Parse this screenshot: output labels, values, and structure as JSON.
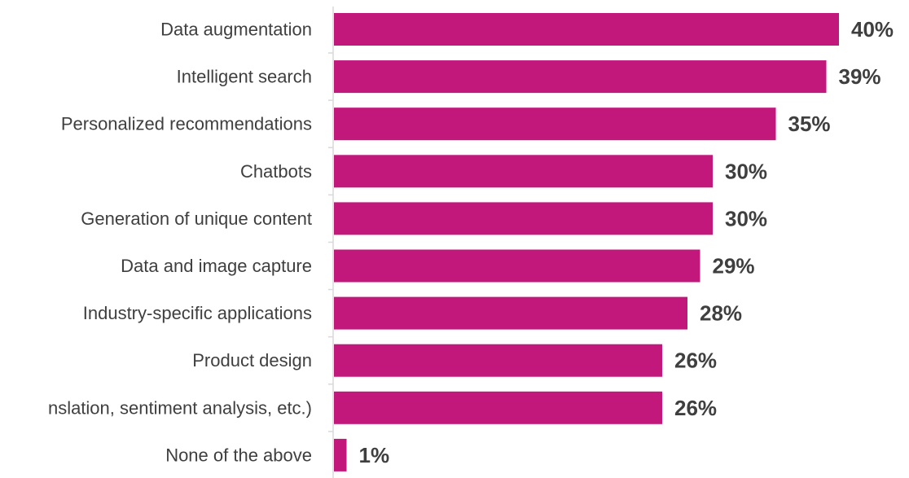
{
  "chart_data": {
    "type": "bar",
    "orientation": "horizontal",
    "categories": [
      "Data augmentation",
      "Intelligent search",
      "Personalized recommendations",
      "Chatbots",
      "Generation of unique content",
      "Data and image capture",
      "Industry-specific applications",
      "Product design",
      "nslation, sentiment analysis, etc.)",
      "None of the above"
    ],
    "values": [
      40,
      39,
      35,
      30,
      30,
      29,
      28,
      26,
      26,
      1
    ],
    "value_labels": [
      "40%",
      "39%",
      "35%",
      "30%",
      "30%",
      "29%",
      "28%",
      "26%",
      "26%",
      "1%"
    ],
    "unit": "%",
    "xlim": [
      0,
      40
    ],
    "grid": false,
    "legend": "none",
    "colors": {
      "bar": "#c2177b",
      "axis": "#d9d9d9",
      "label": "#3f3f3f"
    }
  }
}
